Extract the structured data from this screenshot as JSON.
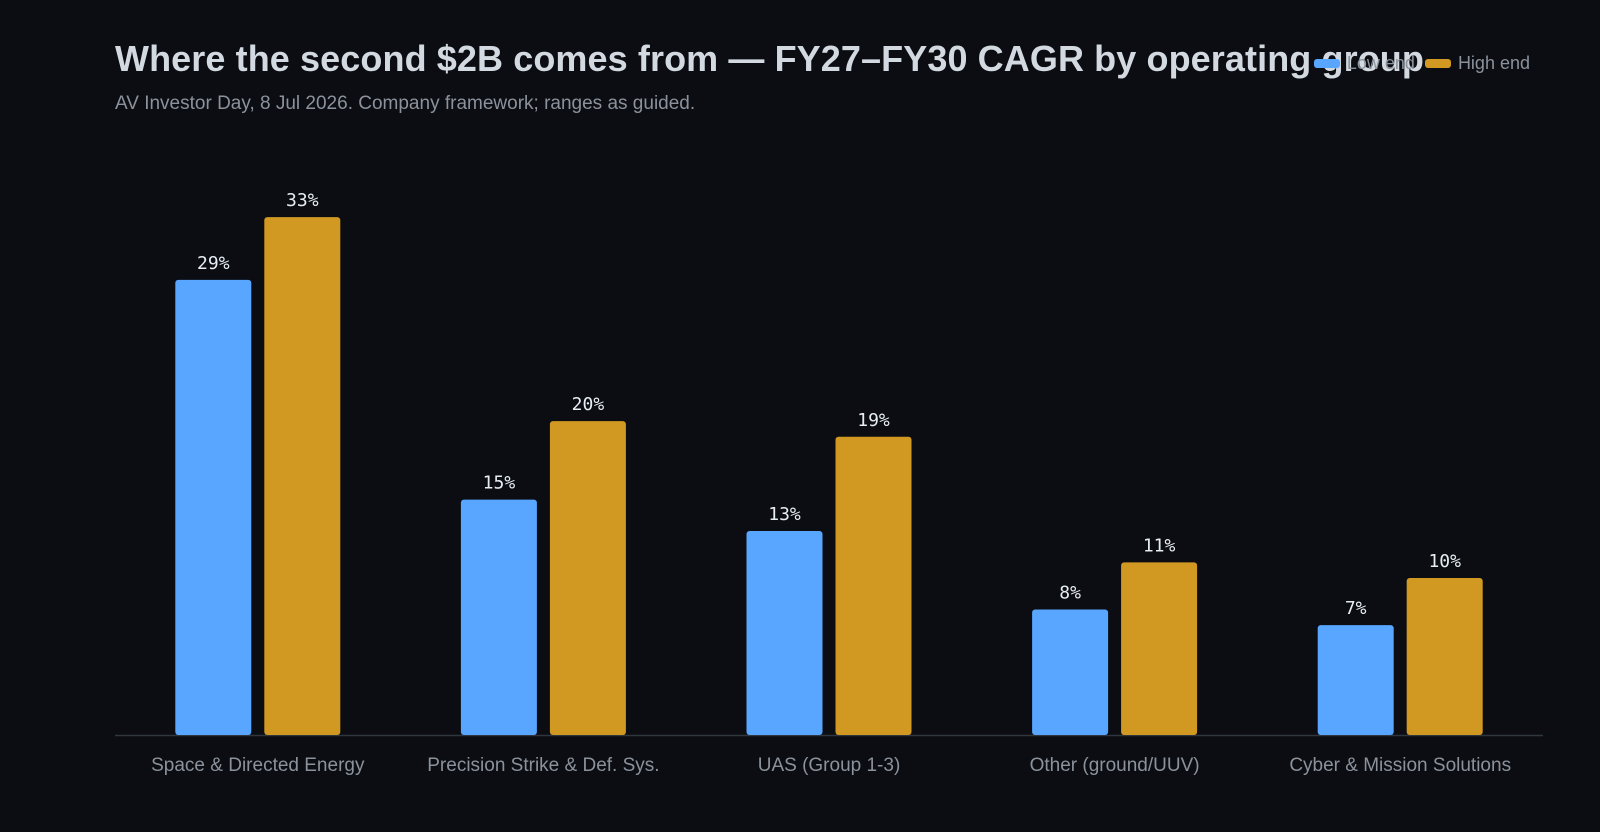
{
  "title": "Where the second $2B comes from — FY27–FY30 CAGR by operating group",
  "subtitle": "AV Investor Day, 8 Jul 2026. Company framework; ranges as guided.",
  "colors": {
    "background": "#0b0d12",
    "low": "#58a6ff",
    "high": "#d29922",
    "axis": "#30363d",
    "label": "#8b929c",
    "value": "#e6edf3"
  },
  "chart_data": {
    "type": "bar",
    "categories": [
      "Space & Directed Energy",
      "Precision Strike & Def. Sys.",
      "UAS (Group 1-3)",
      "Other (ground/UUV)",
      "Cyber & Mission Solutions"
    ],
    "series": [
      {
        "name": "Low end",
        "values": [
          29,
          15,
          13,
          8,
          7
        ],
        "labels": [
          "29%",
          "15%",
          "13%",
          "8%",
          "7%"
        ]
      },
      {
        "name": "High end",
        "values": [
          33,
          20,
          19,
          11,
          10
        ],
        "labels": [
          "33%",
          "20%",
          "19%",
          "11%",
          "10%"
        ]
      }
    ],
    "ylim": [
      0,
      36
    ],
    "grid": false,
    "legend_position": "top-right"
  }
}
